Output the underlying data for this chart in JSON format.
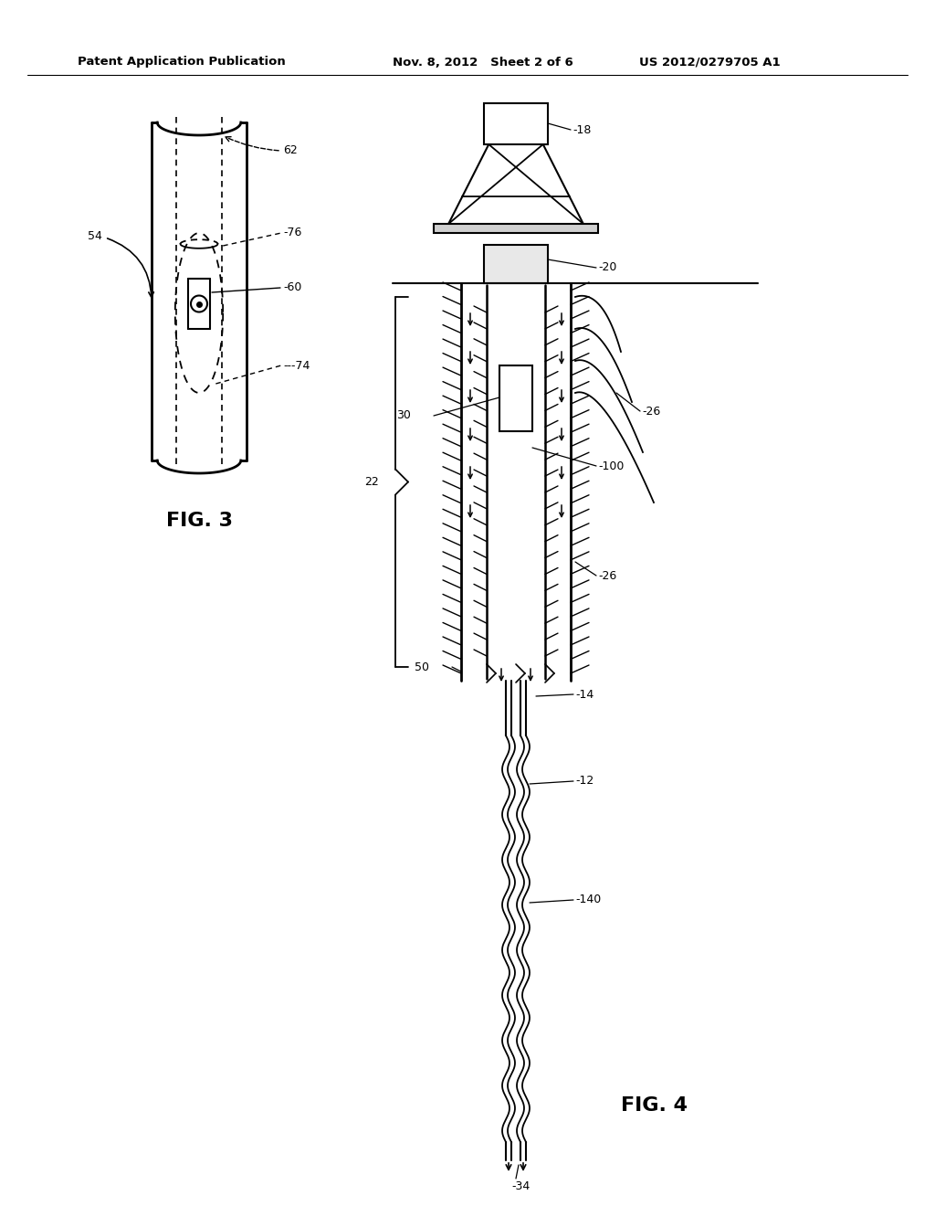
{
  "bg_color": "#ffffff",
  "header_left": "Patent Application Publication",
  "header_mid": "Nov. 8, 2012   Sheet 2 of 6",
  "header_right": "US 2012/0279705 A1",
  "fig3_label": "FIG. 3",
  "fig4_label": "FIG. 4"
}
